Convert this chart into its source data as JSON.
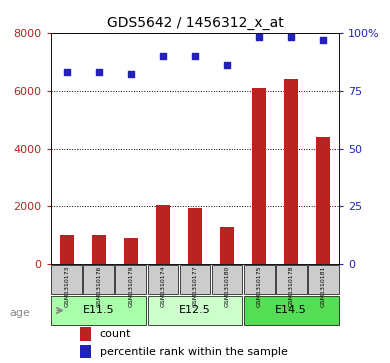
{
  "title": "GDS5642 / 1456312_x_at",
  "samples": [
    "GSM1310173",
    "GSM1310176",
    "GSM1310179",
    "GSM1310174",
    "GSM1310177",
    "GSM1310180",
    "GSM1310175",
    "GSM1310178",
    "GSM1310181"
  ],
  "counts": [
    1000,
    1000,
    900,
    2050,
    1950,
    1300,
    6100,
    6400,
    4400
  ],
  "percentiles": [
    83,
    83,
    82,
    90,
    90,
    86,
    98,
    98,
    97
  ],
  "ylim_left": [
    0,
    8000
  ],
  "ylim_right": [
    0,
    100
  ],
  "yticks_left": [
    0,
    2000,
    4000,
    6000,
    8000
  ],
  "yticks_right": [
    0,
    25,
    50,
    75,
    100
  ],
  "bar_color": "#bb2222",
  "dot_color": "#2222bb",
  "groups": [
    {
      "label": "E11.5",
      "indices": [
        0,
        1,
        2
      ],
      "color": "#aaffaa"
    },
    {
      "label": "E12.5",
      "indices": [
        3,
        4,
        5
      ],
      "color": "#ccffcc"
    },
    {
      "label": "E14.5",
      "indices": [
        6,
        7,
        8
      ],
      "color": "#55dd55"
    }
  ],
  "age_label": "age",
  "legend_count": "count",
  "legend_pct": "percentile rank within the sample",
  "bg_color": "#ffffff",
  "sample_box_color": "#cccccc",
  "bar_width": 0.45
}
